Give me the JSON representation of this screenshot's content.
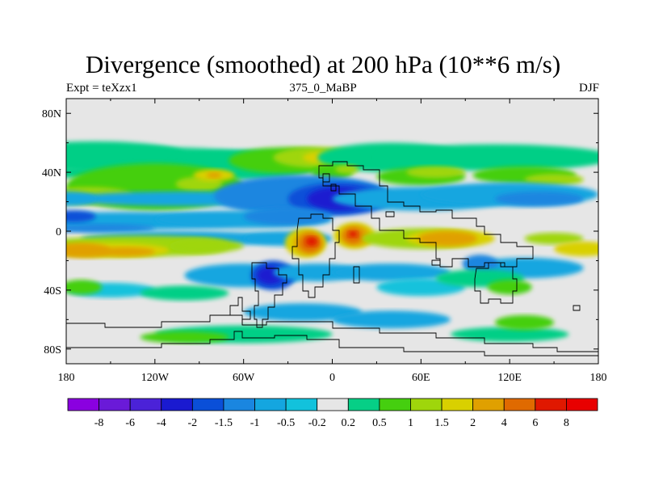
{
  "header": {
    "title": "Divergence (smoothed) at 200 hPa (10**6 m/s)",
    "left": "Expt = teXzx1",
    "center": "375_0_MaBP",
    "right": "DJF"
  },
  "chart_data": {
    "type": "heatmap",
    "title": "Divergence (smoothed) at 200 hPa (10**6 m/s)",
    "x_tick_labels": [
      "180",
      "120W",
      "60W",
      "0",
      "60E",
      "120E",
      "180"
    ],
    "x_tick_values": [
      -180,
      -120,
      -60,
      0,
      60,
      120,
      180
    ],
    "y_tick_labels": [
      "80N",
      "40N",
      "0",
      "40S",
      "80S"
    ],
    "y_tick_values": [
      80,
      40,
      0,
      -40,
      -80
    ],
    "xlim": [
      -180,
      180
    ],
    "ylim": [
      -90,
      90
    ],
    "colorbar": {
      "labels": [
        "-8",
        "-6",
        "-4",
        "-2",
        "-1.5",
        "-1",
        "-0.5",
        "-0.2",
        "0.2",
        "0.5",
        "1",
        "1.5",
        "2",
        "4",
        "6",
        "8"
      ],
      "colors": [
        "#8a00e0",
        "#6a1ad8",
        "#4b22d8",
        "#1a1ad0",
        "#0a4fd8",
        "#1a86e0",
        "#14a6e0",
        "#12c2dc",
        "#e6e6e6",
        "#06cf86",
        "#45cf0f",
        "#9fd60b",
        "#d9d000",
        "#e0a000",
        "#e06a00",
        "#e01800"
      ]
    },
    "background_color": "#e6e6e6",
    "blobs": [
      {
        "lon": -160,
        "lat": 52,
        "w": 60,
        "h": 9,
        "lvl": 9
      },
      {
        "lon": -120,
        "lat": 48,
        "w": 80,
        "h": 9,
        "lvl": 9
      },
      {
        "lon": -60,
        "lat": 45,
        "w": 50,
        "h": 10,
        "lvl": 9
      },
      {
        "lon": -30,
        "lat": 48,
        "w": 40,
        "h": 9,
        "lvl": 10
      },
      {
        "lon": -10,
        "lat": 50,
        "w": 30,
        "h": 7,
        "lvl": 11
      },
      {
        "lon": -6,
        "lat": 50,
        "w": 14,
        "h": 4,
        "lvl": 12
      },
      {
        "lon": 40,
        "lat": 50,
        "w": 50,
        "h": 10,
        "lvl": 9
      },
      {
        "lon": 110,
        "lat": 50,
        "w": 80,
        "h": 9,
        "lvl": 9
      },
      {
        "lon": -160,
        "lat": 40,
        "w": 60,
        "h": 4,
        "lvl": 9
      },
      {
        "lon": -120,
        "lat": 30,
        "w": 60,
        "h": 16,
        "lvl": 10
      },
      {
        "lon": -90,
        "lat": 32,
        "w": 16,
        "h": 5,
        "lvl": 11
      },
      {
        "lon": -80,
        "lat": 38,
        "w": 14,
        "h": 4,
        "lvl": 12
      },
      {
        "lon": -80,
        "lat": 38,
        "w": 5,
        "h": 2,
        "lvl": 13
      },
      {
        "lon": -165,
        "lat": 24,
        "w": 30,
        "h": 6,
        "lvl": 11
      },
      {
        "lon": 0,
        "lat": 40,
        "w": 14,
        "h": 5,
        "lvl": 10
      },
      {
        "lon": 10,
        "lat": 42,
        "w": 8,
        "h": 3,
        "lvl": 11
      },
      {
        "lon": 60,
        "lat": 37,
        "w": 30,
        "h": 6,
        "lvl": 10
      },
      {
        "lon": 70,
        "lat": 40,
        "w": 20,
        "h": 4,
        "lvl": 11
      },
      {
        "lon": 130,
        "lat": 38,
        "w": 35,
        "h": 6,
        "lvl": 10
      },
      {
        "lon": 150,
        "lat": 35,
        "w": 20,
        "h": 4,
        "lvl": 11
      },
      {
        "lon": -100,
        "lat": 22,
        "w": 80,
        "h": 5,
        "lvl": 6
      },
      {
        "lon": -180,
        "lat": 22,
        "w": 20,
        "h": 5,
        "lvl": 6
      },
      {
        "lon": -20,
        "lat": 24,
        "w": 60,
        "h": 14,
        "lvl": 5
      },
      {
        "lon": 5,
        "lat": 22,
        "w": 35,
        "h": 11,
        "lvl": 4
      },
      {
        "lon": 5,
        "lat": 22,
        "w": 22,
        "h": 8,
        "lvl": 3
      },
      {
        "lon": 60,
        "lat": 22,
        "w": 60,
        "h": 8,
        "lvl": 6
      },
      {
        "lon": 120,
        "lat": 25,
        "w": 60,
        "h": 8,
        "lvl": 6
      },
      {
        "lon": 140,
        "lat": 22,
        "w": 30,
        "h": 5,
        "lvl": 5
      },
      {
        "lon": -140,
        "lat": 7,
        "w": 80,
        "h": 6,
        "lvl": 6
      },
      {
        "lon": -60,
        "lat": 8,
        "w": 60,
        "h": 6,
        "lvl": 6
      },
      {
        "lon": -30,
        "lat": 10,
        "w": 30,
        "h": 6,
        "lvl": 5
      },
      {
        "lon": -160,
        "lat": 2,
        "w": 40,
        "h": 3,
        "lvl": 5
      },
      {
        "lon": -175,
        "lat": 10,
        "w": 15,
        "h": 4,
        "lvl": 4
      },
      {
        "lon": -100,
        "lat": -5,
        "w": 70,
        "h": 5,
        "lvl": 6
      },
      {
        "lon": -30,
        "lat": -5,
        "w": 30,
        "h": 5,
        "lvl": 6
      },
      {
        "lon": -130,
        "lat": -10,
        "w": 70,
        "h": 7,
        "lvl": 11
      },
      {
        "lon": -150,
        "lat": -13,
        "w": 40,
        "h": 5,
        "lvl": 12
      },
      {
        "lon": -170,
        "lat": -13,
        "w": 20,
        "h": 5,
        "lvl": 13
      },
      {
        "lon": -140,
        "lat": -14,
        "w": 20,
        "h": 3,
        "lvl": 13
      },
      {
        "lon": -90,
        "lat": -10,
        "w": 20,
        "h": 5,
        "lvl": 11
      },
      {
        "lon": -18,
        "lat": -8,
        "w": 14,
        "h": 10,
        "lvl": 12
      },
      {
        "lon": -16,
        "lat": -8,
        "w": 10,
        "h": 8,
        "lvl": 13
      },
      {
        "lon": -15,
        "lat": -8,
        "w": 7,
        "h": 6,
        "lvl": 14
      },
      {
        "lon": -14,
        "lat": -7,
        "w": 4,
        "h": 3,
        "lvl": 15
      },
      {
        "lon": 15,
        "lat": -3,
        "w": 14,
        "h": 9,
        "lvl": 12
      },
      {
        "lon": 15,
        "lat": -3,
        "w": 10,
        "h": 7,
        "lvl": 13
      },
      {
        "lon": 14,
        "lat": -3,
        "w": 6,
        "h": 5,
        "lvl": 14
      },
      {
        "lon": 14,
        "lat": -2,
        "w": 3,
        "h": 2,
        "lvl": 15
      },
      {
        "lon": 60,
        "lat": -5,
        "w": 40,
        "h": 7,
        "lvl": 11
      },
      {
        "lon": 80,
        "lat": -5,
        "w": 30,
        "h": 6,
        "lvl": 12
      },
      {
        "lon": 78,
        "lat": -5,
        "w": 20,
        "h": 5,
        "lvl": 13
      },
      {
        "lon": 150,
        "lat": -5,
        "w": 20,
        "h": 4,
        "lvl": 11
      },
      {
        "lon": 170,
        "lat": -12,
        "w": 20,
        "h": 5,
        "lvl": 12
      },
      {
        "lon": -60,
        "lat": -30,
        "w": 40,
        "h": 8,
        "lvl": 6
      },
      {
        "lon": -40,
        "lat": -30,
        "w": 15,
        "h": 10,
        "lvl": 4
      },
      {
        "lon": -42,
        "lat": -30,
        "w": 9,
        "h": 6,
        "lvl": 3
      },
      {
        "lon": -10,
        "lat": -28,
        "w": 30,
        "h": 6,
        "lvl": 6
      },
      {
        "lon": 40,
        "lat": -28,
        "w": 40,
        "h": 6,
        "lvl": 6
      },
      {
        "lon": 130,
        "lat": -25,
        "w": 40,
        "h": 7,
        "lvl": 6
      },
      {
        "lon": 100,
        "lat": -22,
        "w": 12,
        "h": 6,
        "lvl": 5
      },
      {
        "lon": -150,
        "lat": -40,
        "w": 30,
        "h": 5,
        "lvl": 7
      },
      {
        "lon": -170,
        "lat": -38,
        "w": 14,
        "h": 5,
        "lvl": 10
      },
      {
        "lon": -100,
        "lat": -42,
        "w": 30,
        "h": 5,
        "lvl": 9
      },
      {
        "lon": 60,
        "lat": -38,
        "w": 30,
        "h": 6,
        "lvl": 7
      },
      {
        "lon": 100,
        "lat": -32,
        "w": 30,
        "h": 6,
        "lvl": 9
      },
      {
        "lon": 120,
        "lat": -38,
        "w": 15,
        "h": 5,
        "lvl": 10
      },
      {
        "lon": -20,
        "lat": -55,
        "w": 40,
        "h": 6,
        "lvl": 6
      },
      {
        "lon": 40,
        "lat": -60,
        "w": 40,
        "h": 6,
        "lvl": 6
      },
      {
        "lon": -60,
        "lat": -70,
        "w": 60,
        "h": 6,
        "lvl": 9
      },
      {
        "lon": -100,
        "lat": -72,
        "w": 30,
        "h": 4,
        "lvl": 10
      },
      {
        "lon": 120,
        "lat": -70,
        "w": 40,
        "h": 5,
        "lvl": 9
      },
      {
        "lon": 130,
        "lat": -62,
        "w": 20,
        "h": 5,
        "lvl": 10
      }
    ]
  }
}
